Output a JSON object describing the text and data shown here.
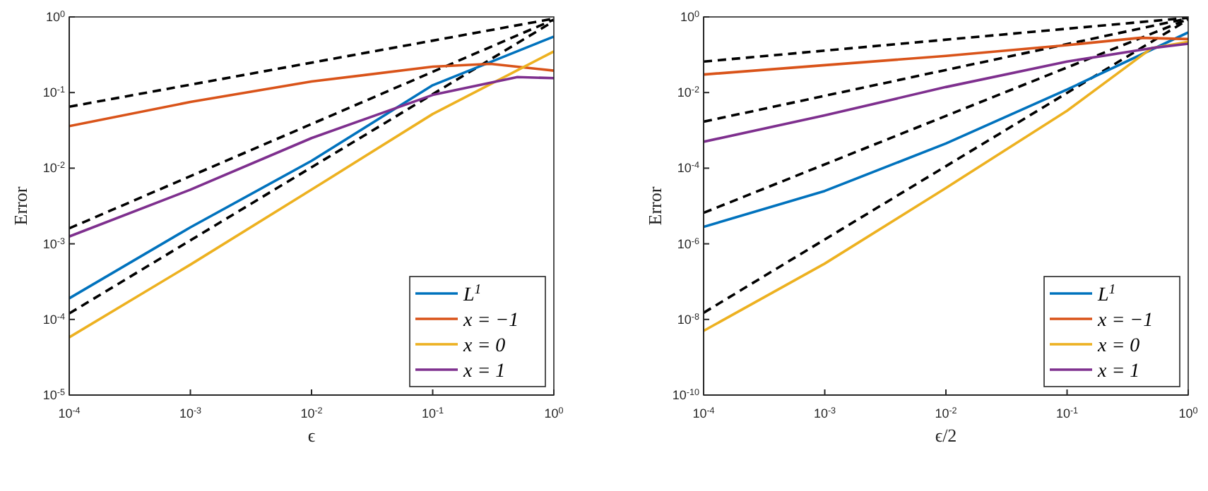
{
  "chart_data": [
    {
      "type": "line",
      "xlabel": "ϵ",
      "ylabel": "Error",
      "log": "xy",
      "grid": false,
      "legend": "bottom right",
      "marker": "none",
      "xlim": [
        0.0001,
        1
      ],
      "ylim": [
        1e-05,
        1
      ],
      "xticks": [
        {
          "value": 0.0001,
          "label": "10$^{-4}$"
        },
        {
          "value": 0.001,
          "label": "10$^{-3}$"
        },
        {
          "value": 0.01,
          "label": "10$^{-2}$"
        },
        {
          "value": 0.1,
          "label": "10$^{-1}$"
        },
        {
          "value": 1,
          "label": "10$^{0}$"
        }
      ],
      "yticks": [
        {
          "value": 1e-05,
          "label": "10$^{-5}$"
        },
        {
          "value": 0.0001,
          "label": "10$^{-4}$"
        },
        {
          "value": 0.001,
          "label": "10$^{-3}$"
        },
        {
          "value": 0.01,
          "label": "10$^{-2}$"
        },
        {
          "value": 0.1,
          "label": "10$^{-1}$"
        },
        {
          "value": 1,
          "label": "10$^{0}$"
        }
      ],
      "series": [
        {
          "color": "#000000",
          "line_style": "dashed",
          "x": [
            0.0001,
            1
          ],
          "values": [
            0.065,
            0.95
          ]
        },
        {
          "color": "#000000",
          "line_style": "dashed",
          "x": [
            0.0001,
            1
          ],
          "values": [
            0.0016,
            0.92
          ]
        },
        {
          "color": "#000000",
          "line_style": "dashed",
          "x": [
            0.0001,
            1
          ],
          "values": [
            0.00012,
            0.88
          ]
        },
        {
          "name": "L$^{1}$",
          "color": "#0072bd",
          "line_style": "solid",
          "x": [
            0.0001,
            0.001,
            0.01,
            0.1,
            1
          ],
          "values": [
            0.00019,
            0.00165,
            0.0125,
            0.125,
            0.55
          ]
        },
        {
          "name": "x = −1",
          "color": "#d95319",
          "line_style": "solid",
          "x": [
            0.0001,
            0.001,
            0.01,
            0.1,
            0.3,
            1
          ],
          "values": [
            0.036,
            0.075,
            0.14,
            0.22,
            0.24,
            0.195
          ]
        },
        {
          "name": "x = 0",
          "color": "#edb120",
          "line_style": "solid",
          "x": [
            0.0001,
            0.001,
            0.01,
            0.1,
            1
          ],
          "values": [
            5.8e-05,
            0.00053,
            0.0052,
            0.052,
            0.35
          ]
        },
        {
          "name": "x = 1",
          "color": "#7e2f8e",
          "line_style": "solid",
          "x": [
            0.0001,
            0.001,
            0.01,
            0.1,
            0.5,
            1
          ],
          "values": [
            0.00125,
            0.0052,
            0.025,
            0.093,
            0.16,
            0.155
          ]
        }
      ]
    },
    {
      "type": "line",
      "xlabel": "ϵ/2",
      "ylabel": "Error",
      "log": "xy",
      "grid": false,
      "legend": "bottom right",
      "marker": "none",
      "xlim": [
        0.0001,
        1
      ],
      "ylim": [
        1e-10,
        1
      ],
      "xticks": [
        {
          "value": 0.0001,
          "label": "10$^{-4}$"
        },
        {
          "value": 0.001,
          "label": "10$^{-3}$"
        },
        {
          "value": 0.01,
          "label": "10$^{-2}$"
        },
        {
          "value": 0.1,
          "label": "10$^{-1}$"
        },
        {
          "value": 1,
          "label": "10$^{0}$"
        }
      ],
      "yticks": [
        {
          "value": 1e-10,
          "label": "10$^{-10}$"
        },
        {
          "value": 1e-08,
          "label": "10$^{-8}$"
        },
        {
          "value": 1e-06,
          "label": "10$^{-6}$"
        },
        {
          "value": 0.0001,
          "label": "10$^{-4}$"
        },
        {
          "value": 0.01,
          "label": "10$^{-2}$"
        },
        {
          "value": 1,
          "label": "10$^{0}$"
        }
      ],
      "series": [
        {
          "color": "#000000",
          "line_style": "dashed",
          "x": [
            0.0001,
            1
          ],
          "values": [
            0.066,
            0.95
          ]
        },
        {
          "color": "#000000",
          "line_style": "dashed",
          "x": [
            0.0001,
            1
          ],
          "values": [
            0.0017,
            0.92
          ]
        },
        {
          "color": "#000000",
          "line_style": "dashed",
          "x": [
            0.0001,
            1
          ],
          "values": [
            6.6e-06,
            0.88
          ]
        },
        {
          "color": "#000000",
          "line_style": "dashed",
          "x": [
            0.0001,
            1
          ],
          "values": [
            1.5e-08,
            0.85
          ]
        },
        {
          "name": "L$^{1}$",
          "color": "#0072bd",
          "line_style": "solid",
          "x": [
            0.0001,
            0.001,
            0.01,
            0.1,
            1
          ],
          "values": [
            2.8e-06,
            2.5e-05,
            0.00045,
            0.012,
            0.39
          ]
        },
        {
          "name": "x = −1",
          "color": "#d95319",
          "line_style": "solid",
          "x": [
            0.0001,
            0.001,
            0.01,
            0.1,
            0.4,
            1
          ],
          "values": [
            0.03,
            0.053,
            0.093,
            0.18,
            0.28,
            0.26
          ]
        },
        {
          "name": "x = 0",
          "color": "#edb120",
          "line_style": "solid",
          "x": [
            0.0001,
            0.001,
            0.01,
            0.1,
            0.5,
            1
          ],
          "values": [
            5e-09,
            3e-07,
            3e-05,
            0.0033,
            0.15,
            0.22
          ]
        },
        {
          "name": "x = 1",
          "color": "#7e2f8e",
          "line_style": "solid",
          "x": [
            0.0001,
            0.001,
            0.01,
            0.1,
            0.5,
            1
          ],
          "values": [
            0.0005,
            0.0025,
            0.014,
            0.066,
            0.15,
            0.195
          ]
        }
      ]
    }
  ]
}
